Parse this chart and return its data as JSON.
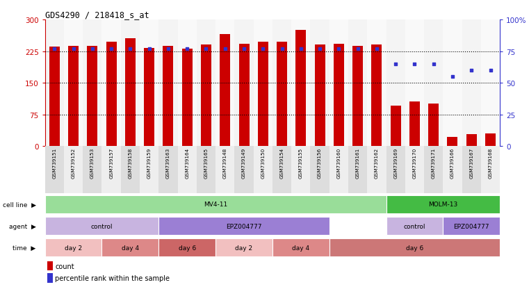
{
  "title": "GDS4290 / 218418_s_at",
  "samples": [
    "GSM739151",
    "GSM739152",
    "GSM739153",
    "GSM739157",
    "GSM739158",
    "GSM739159",
    "GSM739163",
    "GSM739164",
    "GSM739165",
    "GSM739148",
    "GSM739149",
    "GSM739150",
    "GSM739154",
    "GSM739155",
    "GSM739156",
    "GSM739160",
    "GSM739161",
    "GSM739162",
    "GSM739169",
    "GSM739170",
    "GSM739171",
    "GSM739166",
    "GSM739167",
    "GSM739168"
  ],
  "counts": [
    235,
    237,
    238,
    248,
    255,
    232,
    237,
    230,
    240,
    265,
    242,
    248,
    248,
    275,
    240,
    242,
    238,
    240,
    95,
    105,
    100,
    22,
    28,
    30
  ],
  "percentile_ranks": [
    77,
    77,
    77,
    77,
    77,
    77,
    77,
    77,
    77,
    77,
    77,
    77,
    77,
    77,
    77,
    77,
    77,
    77,
    65,
    65,
    65,
    55,
    60,
    60
  ],
  "bar_color": "#cc0000",
  "dot_color": "#3333cc",
  "ylim_left": [
    0,
    300
  ],
  "ylim_right": [
    0,
    100
  ],
  "yticks_left": [
    0,
    75,
    150,
    225,
    300
  ],
  "yticks_right": [
    0,
    25,
    50,
    75,
    100
  ],
  "yticklabels_left": [
    "0",
    "75",
    "150",
    "225",
    "300"
  ],
  "yticklabels_right": [
    "0",
    "25",
    "50",
    "75",
    "100%"
  ],
  "cell_line_data": [
    {
      "label": "MV4-11",
      "start": 0,
      "end": 18,
      "color": "#99dd99"
    },
    {
      "label": "MOLM-13",
      "start": 18,
      "end": 24,
      "color": "#44bb44"
    }
  ],
  "agent_data": [
    {
      "label": "control",
      "start": 0,
      "end": 6,
      "color": "#c8b4e0"
    },
    {
      "label": "EPZ004777",
      "start": 6,
      "end": 15,
      "color": "#9b7fd4"
    },
    {
      "label": "control",
      "start": 18,
      "end": 21,
      "color": "#c8b4e0"
    },
    {
      "label": "EPZ004777",
      "start": 21,
      "end": 24,
      "color": "#9b7fd4"
    }
  ],
  "time_data": [
    {
      "label": "day 2",
      "start": 0,
      "end": 3,
      "color": "#f2c0c0"
    },
    {
      "label": "day 4",
      "start": 3,
      "end": 6,
      "color": "#dd8888"
    },
    {
      "label": "day 6",
      "start": 6,
      "end": 9,
      "color": "#cc6666"
    },
    {
      "label": "day 2",
      "start": 9,
      "end": 12,
      "color": "#f2c0c0"
    },
    {
      "label": "day 4",
      "start": 12,
      "end": 15,
      "color": "#dd8888"
    },
    {
      "label": "day 6",
      "start": 15,
      "end": 24,
      "color": "#cc7777"
    }
  ],
  "legend_count_color": "#cc0000",
  "legend_dot_color": "#3333cc",
  "background_color": "#ffffff",
  "tick_color_left": "#cc0000",
  "tick_color_right": "#3333cc",
  "col_shading_even": "#dddddd",
  "col_shading_odd": "#eeeeee"
}
